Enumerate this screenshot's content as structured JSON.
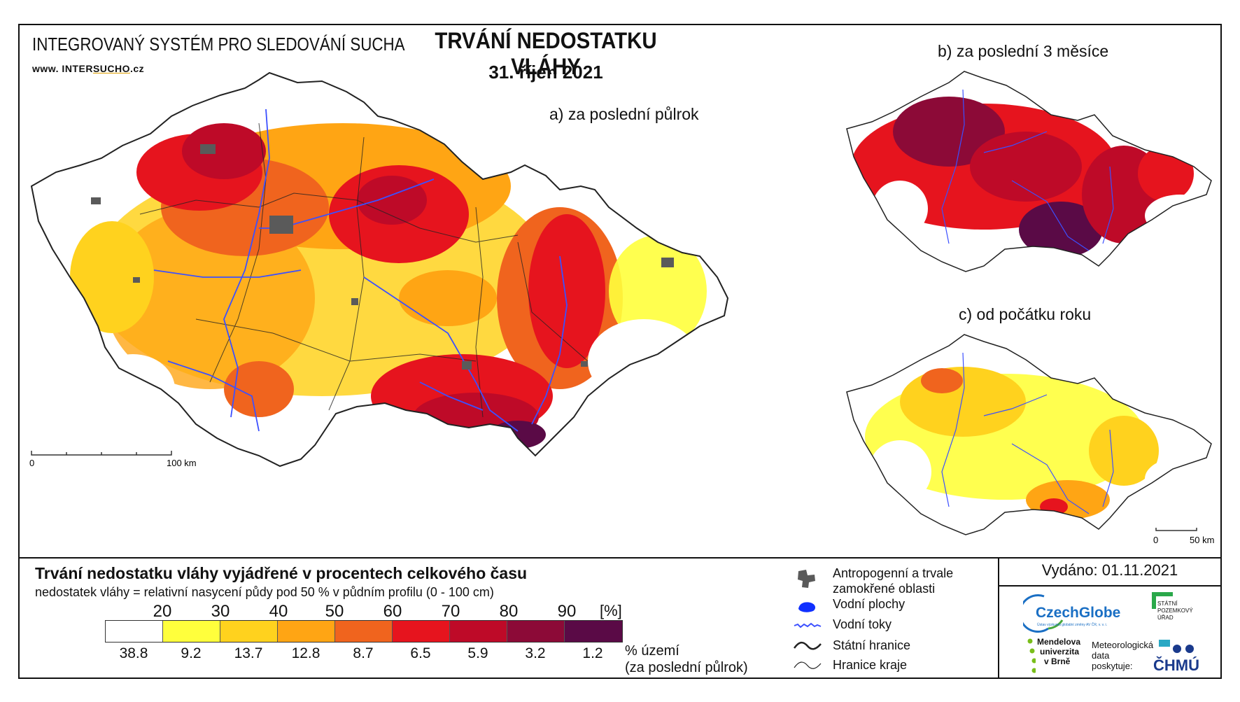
{
  "header": {
    "system_title": "INTEGROVANÝ SYSTÉM PRO SLEDOVÁNÍ SUCHA",
    "url_prefix": "www. INTER",
    "url_mid": "SUCHO",
    "url_suffix": ".cz",
    "main_title": "TRVÁNÍ NEDOSTATKU VLÁHY",
    "date": "31. říjen 2021"
  },
  "panels": {
    "a_label": "a) za poslední půlrok",
    "b_label": "b) za poslední 3 měsíce",
    "c_label": "c) od počátku roku"
  },
  "scalebars": {
    "main_zero": "0",
    "main_end": "100 km",
    "small_zero": "0",
    "small_end": "50 km"
  },
  "legend": {
    "title": "Trvání nedostatku vláhy vyjádřené v procentech celkového času",
    "subtitle": "nedostatek vláhy = relativní nasycení půdy pod 50 % v půdním profilu (0 - 100 cm)",
    "ticks": [
      "20",
      "30",
      "40",
      "50",
      "60",
      "70",
      "80",
      "90"
    ],
    "unit": "[%]",
    "classes": [
      {
        "color": "#ffffff",
        "percent": "38.8"
      },
      {
        "color": "#ffff3c",
        "percent": "9.2"
      },
      {
        "color": "#ffd21e",
        "percent": "13.7"
      },
      {
        "color": "#ffa514",
        "percent": "12.8"
      },
      {
        "color": "#f0641e",
        "percent": "8.7"
      },
      {
        "color": "#e6141e",
        "percent": "6.5"
      },
      {
        "color": "#be0a28",
        "percent": "5.9"
      },
      {
        "color": "#8c0a37",
        "percent": "3.2"
      },
      {
        "color": "#5a0a46",
        "percent": "1.2"
      }
    ],
    "percent_note_line1": "% území",
    "percent_note_line2": "(za poslední půlrok)"
  },
  "map_key": {
    "urban": "Antropogenní a trvale",
    "urban2": "zamokřené oblasti",
    "water_bodies": "Vodní plochy",
    "rivers": "Vodní toky",
    "state_border": "Státní hranice",
    "region_border": "Hranice kraje"
  },
  "issued": "Vydáno: 01.11.2021",
  "logos": {
    "czechglobe": "CzechGlobe",
    "czechglobe_sub": "Ústav výzkumu globální změny AV ČR, v. v. i.",
    "spu": [
      "STÁTNÍ",
      "POZEMKOVÝ",
      "ÚŘAD"
    ],
    "mendelu": [
      "Mendelova",
      "univerzita",
      "v Brně"
    ],
    "meteo": [
      "Meteorologická",
      "data",
      "poskytuje:"
    ],
    "chmu": "ČHMÚ"
  },
  "colors": {
    "river": "#3c50ff",
    "urban": "#5a5a5a",
    "border": "#222222"
  }
}
